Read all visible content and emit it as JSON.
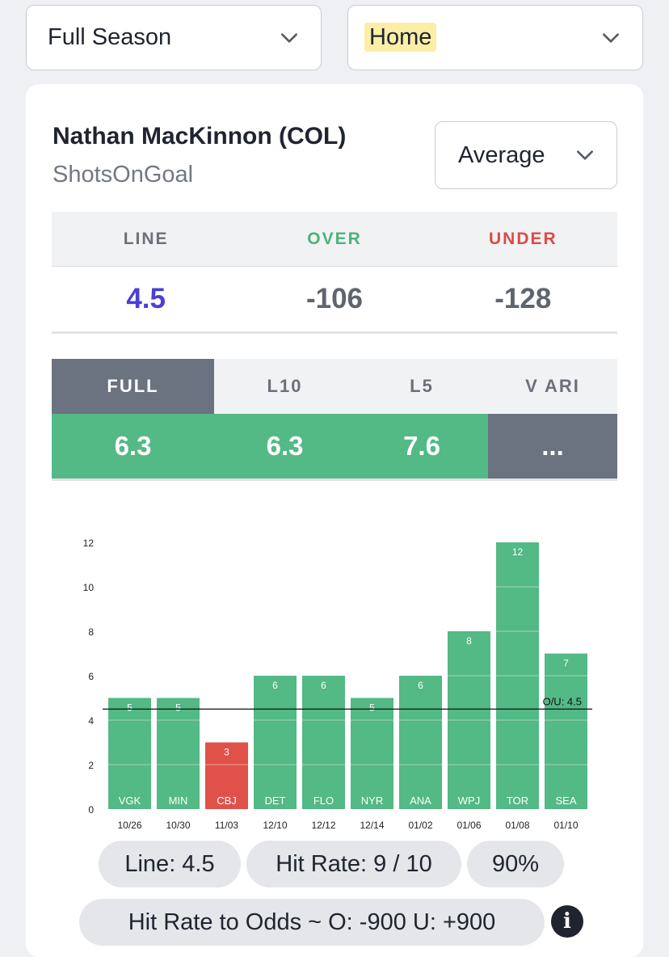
{
  "filters": {
    "season": {
      "value": "Full Season"
    },
    "venue": {
      "value": "Home"
    }
  },
  "player": {
    "name": "Nathan MacKinnon (COL)",
    "stat": "ShotsOnGoal",
    "mode": "Average"
  },
  "odds": {
    "headers": {
      "line": "LINE",
      "over": "OVER",
      "under": "UNDER"
    },
    "line": "4.5",
    "over": "-106",
    "under": "-128"
  },
  "colors": {
    "line": "#4a3fd6",
    "over": "#4bb37b",
    "under": "#dc4b45",
    "bar_hit": "#53b985",
    "bar_miss": "#e0514a"
  },
  "tabs": [
    {
      "label": "FULL",
      "value": "6.3",
      "active": true
    },
    {
      "label": "L10",
      "value": "6.3"
    },
    {
      "label": "L5",
      "value": "7.6"
    },
    {
      "label": "V ARI",
      "value": "..."
    }
  ],
  "chart_data": {
    "type": "bar",
    "categories": [
      "10/26",
      "10/30",
      "11/03",
      "12/10",
      "12/12",
      "12/14",
      "01/02",
      "01/06",
      "01/08",
      "01/10"
    ],
    "opponents": [
      "VGK",
      "MIN",
      "CBJ",
      "DET",
      "FLO",
      "NYR",
      "ANA",
      "WPJ",
      "TOR",
      "SEA"
    ],
    "values": [
      5,
      5,
      3,
      6,
      6,
      5,
      6,
      8,
      12,
      7
    ],
    "ylim": [
      0,
      12
    ],
    "yticks": [
      0,
      2,
      4,
      6,
      8,
      10,
      12
    ],
    "line": 4.5,
    "line_label": "O/U: 4.5"
  },
  "summary": {
    "line": "Line: 4.5",
    "hit_rate": "Hit Rate: 9 / 10",
    "pct": "90%",
    "hit_odds": "Hit Rate to Odds ~ O: -900 U: +900"
  },
  "icons": {
    "dropdown": "chevron-down-icon",
    "info": "info-icon"
  }
}
